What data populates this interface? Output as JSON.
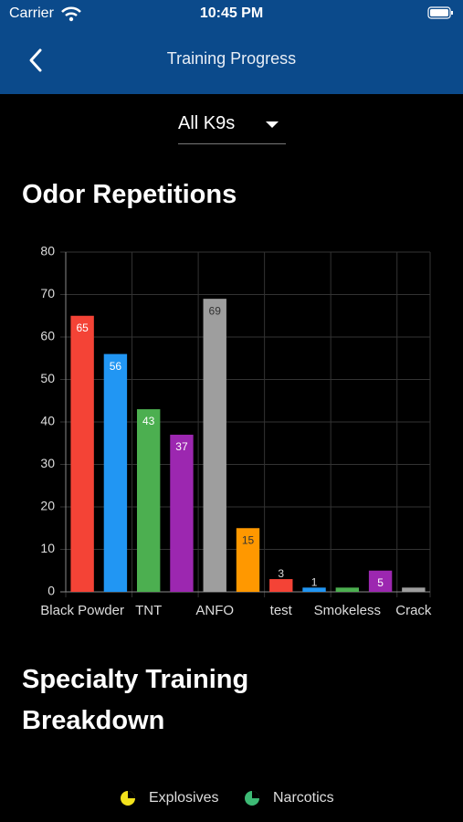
{
  "status_bar": {
    "carrier": "Carrier",
    "time": "10:45 PM"
  },
  "header": {
    "title": "Training Progress"
  },
  "filter": {
    "selected": "All K9s"
  },
  "sections": [
    "Odor Repetitions",
    "Specialty Training Breakdown"
  ],
  "chart_data": {
    "type": "bar",
    "categories": [
      "Black Powder",
      null,
      "TNT",
      null,
      "ANFO",
      null,
      "test",
      null,
      "Smokeless",
      null,
      "Crack"
    ],
    "values": [
      65,
      56,
      43,
      37,
      69,
      15,
      3,
      1,
      1,
      5,
      1
    ],
    "value_labels": [
      "65",
      "56",
      "43",
      "37",
      "69",
      "15",
      "3",
      "1",
      null,
      "5",
      null
    ],
    "colors": [
      "#f44336",
      "#2196f3",
      "#4caf50",
      "#9c27b0",
      "#9e9e9e",
      "#ff9800",
      "#f44336",
      "#2196f3",
      "#4caf50",
      "#9c27b0",
      "#9e9e9e"
    ],
    "ylim": [
      0,
      80
    ],
    "yticks": [
      0,
      10,
      20,
      30,
      40,
      50,
      60,
      70,
      80
    ],
    "grid": true
  },
  "legend": [
    {
      "name": "Explosives",
      "color": "#f2e21c"
    },
    {
      "name": "Narcotics",
      "color": "#3dba75"
    }
  ]
}
